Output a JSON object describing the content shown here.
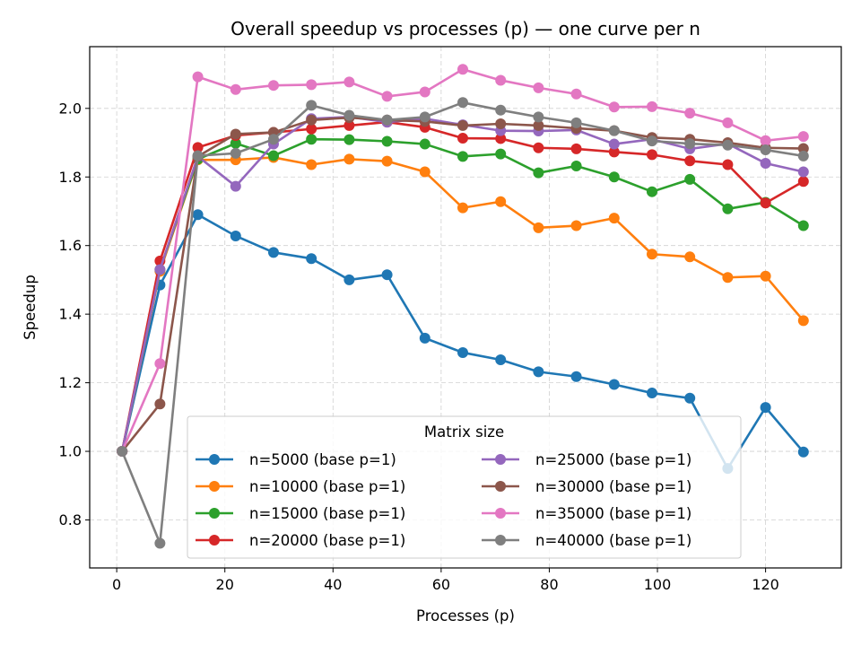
{
  "chart_data": {
    "type": "line",
    "title": "Overall speedup vs processes (p) — one curve per n",
    "xlabel": "Processes (p)",
    "ylabel": "Speedup",
    "xlim": [
      -5,
      134
    ],
    "ylim": [
      0.66,
      2.18
    ],
    "x_ticks": [
      0,
      20,
      40,
      60,
      80,
      100,
      120
    ],
    "y_ticks": [
      0.8,
      1.0,
      1.2,
      1.4,
      1.6,
      1.8,
      2.0
    ],
    "y_tick_labels": [
      "0.8",
      "1.0",
      "1.2",
      "1.4",
      "1.6",
      "1.8",
      "2.0"
    ],
    "grid": true,
    "legend": {
      "title": "Matrix size",
      "placement": "lower-center",
      "columns": 2
    },
    "x": [
      1,
      8,
      15,
      22,
      29,
      36,
      43,
      50,
      57,
      64,
      71,
      78,
      85,
      92,
      99,
      106,
      113,
      120,
      127
    ],
    "series": [
      {
        "name": "n=5000 (base p=1)",
        "color": "#1f77b4",
        "values": [
          1.0,
          1.485,
          1.69,
          1.628,
          1.58,
          1.562,
          1.5,
          1.515,
          1.33,
          1.288,
          1.267,
          1.232,
          1.218,
          1.195,
          1.17,
          1.155,
          0.95,
          1.128,
          0.998
        ]
      },
      {
        "name": "n=10000 (base p=1)",
        "color": "#ff7f0e",
        "values": [
          1.0,
          1.525,
          1.85,
          1.85,
          1.857,
          1.836,
          1.852,
          1.846,
          1.815,
          1.71,
          1.728,
          1.652,
          1.658,
          1.68,
          1.575,
          1.567,
          1.507,
          1.511,
          1.381
        ]
      },
      {
        "name": "n=15000 (base p=1)",
        "color": "#2ca02c",
        "values": [
          1.0,
          1.53,
          1.852,
          1.898,
          1.862,
          1.91,
          1.909,
          1.904,
          1.896,
          1.86,
          1.867,
          1.812,
          1.832,
          1.8,
          1.757,
          1.793,
          1.707,
          1.726,
          1.658
        ]
      },
      {
        "name": "n=20000 (base p=1)",
        "color": "#d62728",
        "values": [
          1.0,
          1.555,
          1.886,
          1.921,
          1.93,
          1.94,
          1.95,
          1.96,
          1.945,
          1.913,
          1.912,
          1.885,
          1.882,
          1.873,
          1.865,
          1.847,
          1.836,
          1.724,
          1.787
        ]
      },
      {
        "name": "n=25000 (base p=1)",
        "color": "#9467bd",
        "values": [
          1.0,
          1.53,
          1.86,
          1.773,
          1.896,
          1.97,
          1.975,
          1.96,
          1.97,
          1.952,
          1.935,
          1.934,
          1.937,
          1.896,
          1.91,
          1.882,
          1.897,
          1.84,
          1.815
        ]
      },
      {
        "name": "n=30000 (base p=1)",
        "color": "#8c564b",
        "values": [
          1.0,
          1.138,
          1.86,
          1.925,
          1.93,
          1.966,
          1.973,
          1.966,
          1.962,
          1.95,
          1.955,
          1.95,
          1.942,
          1.935,
          1.915,
          1.91,
          1.9,
          1.885,
          1.883
        ]
      },
      {
        "name": "n=35000 (base p=1)",
        "color": "#e377c2",
        "values": [
          1.0,
          1.256,
          2.092,
          2.055,
          2.067,
          2.069,
          2.077,
          2.035,
          2.048,
          2.114,
          2.082,
          2.06,
          2.042,
          2.004,
          2.005,
          1.986,
          1.958,
          1.906,
          1.918
        ]
      },
      {
        "name": "n=40000 (base p=1)",
        "color": "#7f7f7f",
        "values": [
          1.0,
          0.732,
          1.862,
          1.869,
          1.91,
          2.009,
          1.98,
          1.966,
          1.975,
          2.017,
          1.995,
          1.975,
          1.958,
          1.935,
          1.905,
          1.897,
          1.893,
          1.879,
          1.861
        ]
      }
    ]
  }
}
